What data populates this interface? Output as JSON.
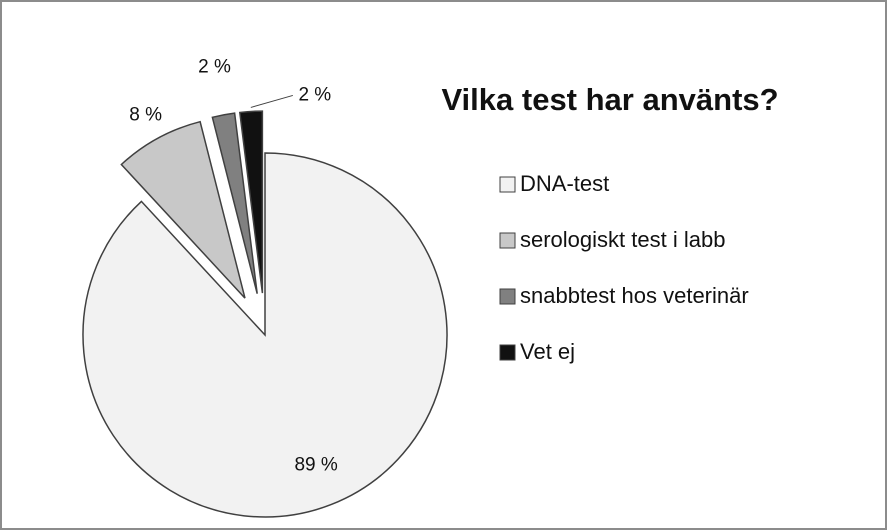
{
  "chart_data": {
    "type": "pie",
    "title": "Vilka test har använts?",
    "categories": [
      "DNA-test",
      "serologiskt test i labb",
      "snabbtest hos veterinär",
      "Vet ej"
    ],
    "values": [
      89,
      8,
      2,
      2
    ],
    "value_labels": [
      "89 %",
      "8 %",
      "2 %",
      "2 %"
    ],
    "colors": [
      "#f2f2f2",
      "#c8c8c8",
      "#808080",
      "#111111"
    ],
    "legend": "right"
  }
}
